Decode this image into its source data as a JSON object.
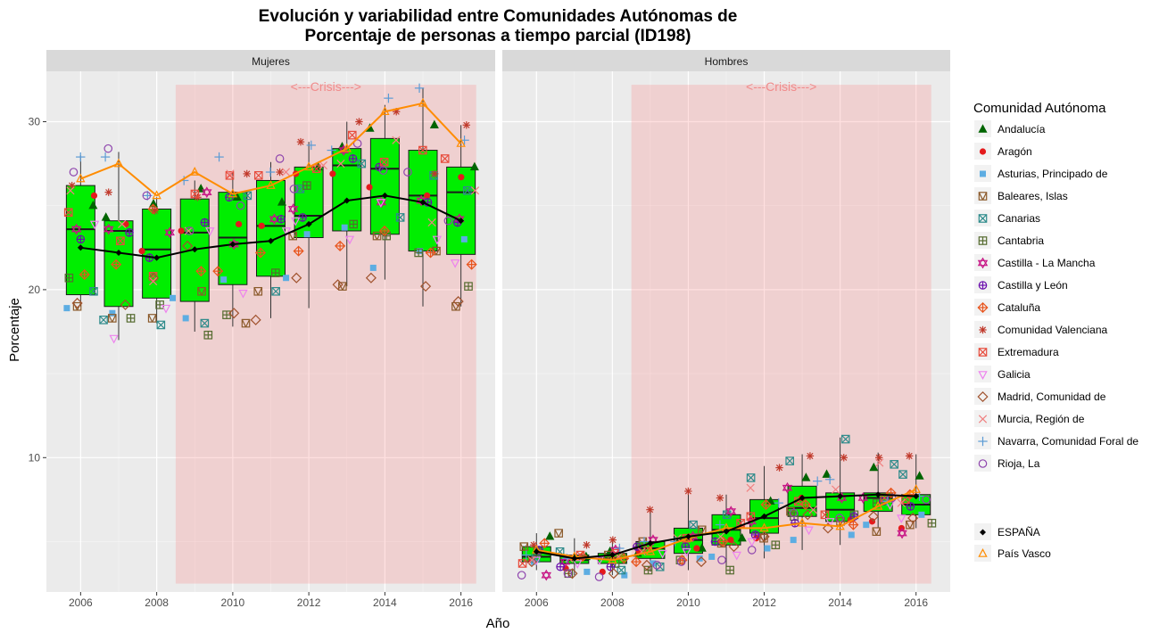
{
  "chart_data": {
    "type": "box",
    "title_line1": "Evolución y variabilidad entre Comunidades Autónomas de",
    "title_line2": "Porcentaje de personas a tiempo parcial (ID198)",
    "xlabel": "Año",
    "ylabel": "Porcentaje",
    "ylim": [
      2,
      33
    ],
    "y_ticks": [
      10,
      20,
      30
    ],
    "x_ticks": [
      2006,
      2008,
      2010,
      2012,
      2014,
      2016
    ],
    "xlim": [
      2005.1,
      2016.9
    ],
    "grid": true,
    "crisis": {
      "label": "<---Crisis--->",
      "from": 2008.5,
      "to": 2016.4,
      "y_from": 2.5,
      "y_to": 32.2
    },
    "legend_title": "Comunidad Autónoma",
    "legend_position": "right",
    "regions": [
      {
        "name": "Andalucía",
        "color": "#006400",
        "shape": "triangle-filled"
      },
      {
        "name": "Aragón",
        "color": "#e41a1c",
        "shape": "circle-filled"
      },
      {
        "name": "Asturias, Principado de",
        "color": "#5dade2",
        "shape": "square-filled"
      },
      {
        "name": "Baleares, Islas",
        "color": "#8b5a2b",
        "shape": "square-x"
      },
      {
        "name": "Canarias",
        "color": "#2e8b8b",
        "shape": "square-x2"
      },
      {
        "name": "Cantabria",
        "color": "#556b2f",
        "shape": "square-plus"
      },
      {
        "name": "Castilla - La Mancha",
        "color": "#c71585",
        "shape": "star-david"
      },
      {
        "name": "Castilla y León",
        "color": "#6a0dad",
        "shape": "circle-plus"
      },
      {
        "name": "Cataluña",
        "color": "#e8541c",
        "shape": "diamond-plus"
      },
      {
        "name": "Comunidad Valenciana",
        "color": "#c0392b",
        "shape": "asterisk"
      },
      {
        "name": "Extremadura",
        "color": "#e74c3c",
        "shape": "square-cross"
      },
      {
        "name": "Galicia",
        "color": "#ee82ee",
        "shape": "triangle-down"
      },
      {
        "name": "Madrid, Comunidad de",
        "color": "#a0522d",
        "shape": "diamond"
      },
      {
        "name": "Murcia, Región de",
        "color": "#f08080",
        "shape": "x"
      },
      {
        "name": "Navarra, Comunidad Foral de",
        "color": "#5b9bd5",
        "shape": "plus"
      },
      {
        "name": "Rioja, La",
        "color": "#8e44ad",
        "shape": "circle"
      }
    ],
    "summary_series": [
      {
        "name": "ESPAÑA",
        "color": "#000000",
        "shape": "diamond-filled"
      },
      {
        "name": "País Vasco",
        "color": "#ff8c00",
        "shape": "triangle"
      }
    ],
    "panels": [
      {
        "name": "Mujeres",
        "boxes": [
          {
            "year": 2006,
            "q1": 19.7,
            "median": 23.6,
            "q3": 26.2,
            "low": 19.0,
            "high": 28.0
          },
          {
            "year": 2007,
            "q1": 19.0,
            "median": 23.5,
            "q3": 24.1,
            "low": 17.0,
            "high": 28.2
          },
          {
            "year": 2008,
            "q1": 19.5,
            "median": 22.4,
            "q3": 24.8,
            "low": 18.0,
            "high": 25.5
          },
          {
            "year": 2009,
            "q1": 19.3,
            "median": 23.4,
            "q3": 25.4,
            "low": 17.5,
            "high": 26.5
          },
          {
            "year": 2010,
            "q1": 20.3,
            "median": 23.1,
            "q3": 25.8,
            "low": 17.8,
            "high": 27.0
          },
          {
            "year": 2011,
            "q1": 20.8,
            "median": 23.8,
            "q3": 26.5,
            "low": 18.3,
            "high": 27.6
          },
          {
            "year": 2012,
            "q1": 23.1,
            "median": 24.4,
            "q3": 27.3,
            "low": 18.9,
            "high": 28.8
          },
          {
            "year": 2013,
            "q1": 23.5,
            "median": 27.4,
            "q3": 28.4,
            "low": 20.2,
            "high": 30.0
          },
          {
            "year": 2014,
            "q1": 23.3,
            "median": 27.2,
            "q3": 29.0,
            "low": 20.6,
            "high": 31.0
          },
          {
            "year": 2015,
            "q1": 22.3,
            "median": 25.6,
            "q3": 28.3,
            "low": 19.0,
            "high": 32.0
          },
          {
            "year": 2016,
            "q1": 22.1,
            "median": 25.8,
            "q3": 27.3,
            "low": 19.0,
            "high": 29.8
          }
        ],
        "espana": [
          22.5,
          22.2,
          21.9,
          22.4,
          22.7,
          22.9,
          23.9,
          25.3,
          25.6,
          25.2,
          24.1
        ],
        "pais_vasco": [
          26.6,
          27.5,
          25.6,
          27.0,
          25.7,
          26.2,
          27.3,
          28.4,
          30.6,
          31.1,
          28.7
        ],
        "points": [
          [
            25.0,
            25.6,
            18.9,
            19.0,
            19.9,
            20.7,
            23.6,
            23.0,
            20.9,
            26.2,
            24.6,
            23.9,
            19.2,
            25.9,
            27.9,
            27.0
          ],
          [
            24.3,
            23.9,
            18.6,
            18.3,
            18.2,
            18.3,
            23.6,
            23.4,
            21.5,
            25.8,
            22.9,
            17.1,
            19.1,
            23.9,
            27.9,
            28.4
          ],
          [
            25.1,
            22.3,
            19.5,
            18.3,
            17.9,
            19.1,
            23.4,
            21.9,
            24.8,
            24.7,
            20.8,
            18.9,
            20.7,
            20.5,
            25.6,
            25.6
          ],
          [
            26.0,
            23.5,
            18.3,
            19.9,
            18.0,
            17.3,
            25.8,
            24.0,
            21.1,
            25.5,
            25.7,
            23.5,
            22.6,
            23.5,
            26.5,
            23.5
          ],
          [
            25.5,
            23.9,
            20.6,
            18.0,
            25.6,
            18.5,
            22.7,
            25.5,
            21.1,
            26.9,
            26.8,
            19.8,
            18.6,
            26.9,
            27.9,
            25.0
          ],
          [
            25.2,
            23.8,
            20.7,
            19.9,
            19.9,
            21.0,
            24.2,
            24.2,
            22.2,
            27.0,
            26.8,
            23.5,
            18.2,
            27.0,
            27.0,
            27.8
          ],
          [
            27.3,
            26.9,
            23.3,
            23.2,
            26.0,
            26.2,
            24.8,
            24.3,
            22.3,
            28.8,
            27.2,
            24.1,
            20.7,
            27.4,
            28.6,
            26.0
          ],
          [
            28.5,
            26.9,
            23.7,
            20.2,
            27.5,
            23.9,
            28.3,
            27.8,
            22.6,
            30.0,
            29.2,
            23.0,
            20.3,
            27.5,
            28.3,
            28.7
          ],
          [
            29.6,
            26.1,
            21.3,
            23.2,
            24.3,
            23.2,
            25.2,
            27.3,
            23.5,
            30.6,
            27.6,
            25.2,
            20.7,
            28.9,
            31.4,
            27.1
          ],
          [
            29.8,
            25.6,
            22.3,
            22.3,
            26.8,
            22.2,
            25.3,
            25.2,
            22.2,
            26.9,
            28.3,
            23.0,
            20.2,
            24.0,
            32.0,
            27.0
          ],
          [
            27.3,
            26.7,
            23.0,
            19.0,
            25.9,
            20.2,
            24.2,
            24.0,
            21.5,
            29.8,
            27.8,
            21.6,
            19.3,
            25.9,
            28.9,
            24.1
          ]
        ]
      },
      {
        "name": "Hombres",
        "boxes": [
          {
            "year": 2006,
            "q1": 3.8,
            "median": 4.1,
            "q3": 4.7,
            "low": 3.3,
            "high": 5.5
          },
          {
            "year": 2007,
            "q1": 3.7,
            "median": 3.9,
            "q3": 4.2,
            "low": 3.0,
            "high": 5.2
          },
          {
            "year": 2008,
            "q1": 3.7,
            "median": 4.0,
            "q3": 4.3,
            "low": 3.0,
            "high": 5.0
          },
          {
            "year": 2009,
            "q1": 4.0,
            "median": 4.6,
            "q3": 5.0,
            "low": 3.2,
            "high": 6.8
          },
          {
            "year": 2010,
            "q1": 4.3,
            "median": 5.1,
            "q3": 5.8,
            "low": 3.3,
            "high": 7.9
          },
          {
            "year": 2011,
            "q1": 4.8,
            "median": 5.7,
            "q3": 6.6,
            "low": 3.3,
            "high": 7.8
          },
          {
            "year": 2012,
            "q1": 5.5,
            "median": 6.4,
            "q3": 7.5,
            "low": 4.0,
            "high": 9.5
          },
          {
            "year": 2013,
            "q1": 6.5,
            "median": 7.0,
            "q3": 8.3,
            "low": 4.5,
            "high": 10.2
          },
          {
            "year": 2014,
            "q1": 6.2,
            "median": 6.9,
            "q3": 7.9,
            "low": 4.8,
            "high": 11.2
          },
          {
            "year": 2015,
            "q1": 6.8,
            "median": 7.6,
            "q3": 7.9,
            "low": 5.8,
            "high": 10.3
          },
          {
            "year": 2016,
            "q1": 6.6,
            "median": 7.2,
            "q3": 7.8,
            "low": 5.8,
            "high": 10.2
          }
        ],
        "espana": [
          4.4,
          4.0,
          4.2,
          4.9,
          5.3,
          5.6,
          6.5,
          7.6,
          7.7,
          7.8,
          7.7
        ],
        "pais_vasco": [
          4.5,
          4.1,
          3.9,
          4.4,
          5.2,
          5.8,
          5.8,
          6.1,
          5.9,
          7.1,
          8.1
        ],
        "points": [
          [
            5.3,
            3.9,
            3.8,
            4.7,
            4.0,
            4.4,
            3.0,
            4.5,
            4.9,
            4.8,
            3.7,
            3.9,
            3.8,
            3.9,
            4.2,
            3.0
          ],
          [
            4.1,
            3.4,
            3.2,
            5.5,
            4.4,
            3.1,
            3.8,
            3.5,
            4.1,
            4.8,
            4.2,
            3.7,
            3.1,
            4.0,
            4.0,
            3.1
          ],
          [
            4.4,
            3.2,
            3.0,
            4.2,
            3.3,
            3.7,
            4.5,
            3.5,
            4.0,
            5.1,
            4.3,
            3.9,
            3.1,
            4.1,
            4.6,
            2.9
          ],
          [
            4.3,
            4.4,
            3.7,
            5.0,
            3.5,
            3.3,
            5.1,
            4.7,
            3.8,
            6.9,
            4.6,
            4.3,
            3.6,
            4.4,
            5.0,
            3.6
          ],
          [
            4.6,
            4.6,
            4.0,
            5.7,
            6.0,
            3.9,
            5.3,
            4.7,
            3.9,
            8.0,
            5.2,
            4.4,
            3.8,
            5.2,
            5.0,
            3.8
          ],
          [
            5.2,
            5.1,
            4.1,
            4.9,
            6.6,
            3.3,
            6.8,
            5.0,
            5.0,
            7.6,
            6.1,
            4.2,
            4.7,
            5.3,
            6.0,
            3.9
          ],
          [
            7.4,
            5.2,
            4.6,
            5.2,
            8.8,
            4.8,
            6.2,
            5.4,
            7.2,
            9.4,
            6.5,
            5.0,
            5.3,
            8.2,
            7.3,
            4.5
          ],
          [
            8.8,
            7.6,
            5.1,
            6.8,
            9.8,
            6.5,
            8.2,
            6.1,
            7.2,
            10.1,
            7.4,
            5.7,
            6.6,
            6.9,
            8.6,
            6.7
          ],
          [
            9.0,
            6.3,
            5.4,
            6.2,
            11.1,
            6.6,
            7.6,
            6.5,
            6.0,
            10.0,
            6.6,
            6.2,
            5.8,
            8.1,
            8.7,
            6.4
          ],
          [
            9.4,
            6.2,
            6.0,
            5.6,
            9.6,
            7.3,
            7.6,
            7.4,
            7.9,
            10.0,
            7.6,
            7.2,
            6.5,
            9.7,
            7.4,
            7.6
          ],
          [
            8.9,
            5.8,
            6.6,
            6.0,
            9.0,
            6.1,
            5.5,
            7.1,
            7.8,
            10.1,
            7.5,
            6.4,
            6.4,
            7.3,
            7.7,
            7.5
          ]
        ]
      }
    ]
  }
}
